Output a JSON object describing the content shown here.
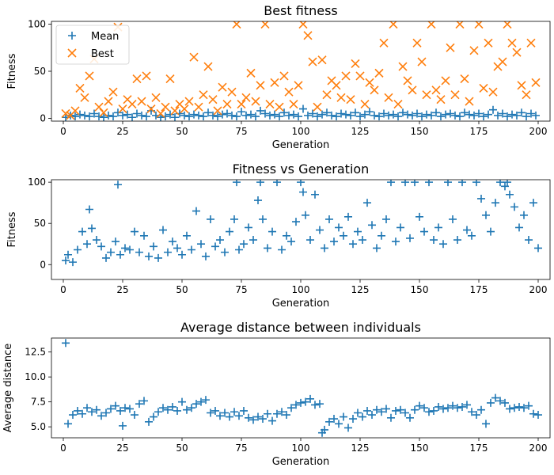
{
  "colors": {
    "mean": "#1f77b4",
    "best": "#ff7f0e"
  },
  "chart_data": [
    {
      "type": "scatter",
      "title": "Best fitness",
      "xlabel": "Generation",
      "ylabel": "Fitness",
      "xlim": [
        -5,
        205
      ],
      "ylim": [
        -3,
        103
      ],
      "xticks": [
        "0",
        "25",
        "50",
        "75",
        "100",
        "125",
        "150",
        "175",
        "200"
      ],
      "yticks": [
        "0",
        "50",
        "100"
      ],
      "legend": {
        "position": "top-left",
        "entries": [
          "Mean",
          "Best"
        ]
      },
      "series": [
        {
          "name": "Mean",
          "marker": "plus",
          "x": [
            1,
            3,
            5,
            7,
            9,
            11,
            13,
            15,
            17,
            19,
            21,
            23,
            25,
            27,
            29,
            31,
            33,
            35,
            37,
            39,
            41,
            43,
            45,
            47,
            49,
            51,
            53,
            55,
            57,
            59,
            61,
            63,
            65,
            67,
            69,
            71,
            73,
            75,
            77,
            79,
            81,
            83,
            85,
            87,
            89,
            91,
            93,
            95,
            97,
            99,
            101,
            103,
            105,
            107,
            109,
            111,
            113,
            115,
            117,
            119,
            121,
            123,
            125,
            127,
            129,
            131,
            133,
            135,
            137,
            139,
            141,
            143,
            145,
            147,
            149,
            151,
            153,
            155,
            157,
            159,
            161,
            163,
            165,
            167,
            169,
            171,
            173,
            175,
            177,
            179,
            181,
            183,
            185,
            187,
            189,
            191,
            193,
            195,
            197,
            199
          ],
          "y": [
            1,
            3,
            2,
            4,
            3,
            2,
            5,
            2,
            1,
            3,
            2,
            6,
            3,
            4,
            1,
            5,
            3,
            2,
            8,
            3,
            1,
            2,
            4,
            1,
            5,
            3,
            2,
            4,
            3,
            2,
            6,
            3,
            2,
            4,
            5,
            3,
            2,
            7,
            3,
            4,
            2,
            8,
            5,
            3,
            4,
            2,
            6,
            3,
            4,
            2,
            10,
            3,
            5,
            2,
            4,
            6,
            3,
            2,
            5,
            4,
            3,
            6,
            2,
            4,
            7,
            3,
            2,
            5,
            3,
            4,
            2,
            6,
            4,
            3,
            5,
            2,
            4,
            3,
            6,
            2,
            4,
            5,
            3,
            2,
            6,
            4,
            3,
            5,
            2,
            4,
            9,
            3,
            5,
            2,
            4,
            3,
            6,
            2,
            5,
            3
          ]
        },
        {
          "name": "Best",
          "marker": "x",
          "x": [
            1,
            3,
            5,
            7,
            9,
            11,
            13,
            15,
            17,
            19,
            21,
            23,
            25,
            27,
            29,
            31,
            33,
            35,
            37,
            39,
            41,
            43,
            45,
            47,
            49,
            51,
            53,
            55,
            57,
            59,
            61,
            63,
            65,
            67,
            69,
            71,
            73,
            75,
            77,
            79,
            81,
            83,
            85,
            87,
            89,
            91,
            93,
            95,
            97,
            99,
            101,
            103,
            105,
            107,
            109,
            111,
            113,
            115,
            117,
            119,
            121,
            123,
            125,
            127,
            129,
            131,
            133,
            135,
            137,
            139,
            141,
            143,
            145,
            147,
            149,
            151,
            153,
            155,
            157,
            159,
            161,
            163,
            165,
            167,
            169,
            171,
            173,
            175,
            177,
            179,
            181,
            183,
            185,
            187,
            189,
            191,
            193,
            195,
            197,
            199
          ],
          "y": [
            5,
            3,
            8,
            32,
            22,
            45,
            63,
            12,
            6,
            18,
            28,
            97,
            10,
            20,
            15,
            42,
            18,
            45,
            10,
            22,
            5,
            12,
            42,
            8,
            15,
            10,
            18,
            65,
            12,
            25,
            55,
            20,
            8,
            33,
            15,
            28,
            100,
            15,
            22,
            48,
            18,
            35,
            100,
            15,
            38,
            12,
            45,
            28,
            15,
            35,
            100,
            88,
            60,
            12,
            62,
            25,
            40,
            35,
            22,
            45,
            20,
            58,
            45,
            15,
            38,
            30,
            48,
            80,
            22,
            100,
            15,
            55,
            40,
            30,
            80,
            60,
            25,
            100,
            30,
            20,
            40,
            75,
            25,
            100,
            42,
            18,
            72,
            100,
            32,
            80,
            28,
            55,
            60,
            100,
            80,
            70,
            35,
            25,
            80,
            38
          ]
        }
      ]
    },
    {
      "type": "scatter",
      "title": "Fitness vs Generation",
      "xlabel": "Generation",
      "ylabel": "Fitness",
      "xlim": [
        -5,
        205
      ],
      "ylim": [
        -18,
        103
      ],
      "xticks": [
        "0",
        "25",
        "50",
        "75",
        "100",
        "125",
        "150",
        "175",
        "200"
      ],
      "yticks": [
        "0",
        "50",
        "100"
      ],
      "series": [
        {
          "marker": "plus",
          "x": [
            1,
            2,
            4,
            6,
            8,
            10,
            11,
            12,
            14,
            16,
            18,
            20,
            22,
            23,
            24,
            26,
            28,
            30,
            32,
            34,
            36,
            38,
            40,
            42,
            44,
            46,
            48,
            50,
            52,
            54,
            56,
            58,
            60,
            62,
            64,
            66,
            68,
            70,
            72,
            73,
            74,
            76,
            78,
            80,
            82,
            83,
            84,
            86,
            88,
            90,
            92,
            94,
            96,
            98,
            100,
            101,
            102,
            104,
            106,
            108,
            110,
            112,
            114,
            116,
            118,
            120,
            122,
            124,
            126,
            128,
            130,
            132,
            134,
            136,
            138,
            140,
            142,
            144,
            146,
            148,
            150,
            152,
            154,
            156,
            158,
            160,
            162,
            164,
            166,
            168,
            170,
            172,
            174,
            176,
            178,
            180,
            182,
            184,
            186,
            187,
            188,
            190,
            192,
            194,
            196,
            198,
            200
          ],
          "y": [
            5,
            12,
            3,
            18,
            40,
            25,
            67,
            44,
            30,
            22,
            8,
            15,
            28,
            97,
            12,
            20,
            18,
            40,
            15,
            35,
            10,
            22,
            8,
            42,
            15,
            28,
            20,
            12,
            35,
            18,
            65,
            25,
            10,
            55,
            22,
            30,
            15,
            40,
            55,
            100,
            18,
            25,
            45,
            30,
            78,
            100,
            55,
            20,
            40,
            100,
            18,
            35,
            28,
            52,
            100,
            88,
            60,
            30,
            85,
            42,
            20,
            55,
            28,
            45,
            35,
            58,
            25,
            40,
            30,
            75,
            48,
            20,
            35,
            55,
            100,
            28,
            45,
            100,
            32,
            100,
            58,
            40,
            100,
            30,
            45,
            25,
            100,
            55,
            30,
            100,
            42,
            35,
            100,
            80,
            60,
            40,
            75,
            100,
            95,
            100,
            85,
            70,
            45,
            60,
            30,
            75,
            20
          ]
        }
      ]
    },
    {
      "type": "scatter",
      "title": "Average distance between individuals",
      "xlabel": "Generation",
      "ylabel": "Average distance",
      "xlim": [
        -5,
        205
      ],
      "ylim": [
        3.9,
        13.9
      ],
      "xticks": [
        "0",
        "25",
        "50",
        "75",
        "100",
        "125",
        "150",
        "175",
        "200"
      ],
      "yticks": [
        "5.0",
        "7.5",
        "10.0",
        "12.5"
      ],
      "series": [
        {
          "marker": "plus",
          "x": [
            1,
            2,
            4,
            6,
            8,
            10,
            12,
            14,
            16,
            18,
            20,
            22,
            24,
            25,
            26,
            28,
            30,
            32,
            34,
            36,
            38,
            40,
            42,
            44,
            46,
            48,
            50,
            52,
            54,
            56,
            58,
            60,
            62,
            64,
            66,
            68,
            70,
            72,
            74,
            76,
            78,
            80,
            82,
            84,
            86,
            88,
            90,
            92,
            94,
            96,
            98,
            100,
            102,
            104,
            106,
            108,
            109,
            110,
            112,
            114,
            116,
            118,
            120,
            122,
            124,
            126,
            128,
            130,
            132,
            134,
            136,
            138,
            140,
            142,
            144,
            146,
            148,
            150,
            152,
            154,
            156,
            158,
            160,
            162,
            164,
            166,
            168,
            170,
            172,
            174,
            176,
            178,
            180,
            182,
            184,
            186,
            188,
            190,
            192,
            194,
            196,
            198,
            200
          ],
          "y": [
            13.4,
            5.3,
            6.2,
            6.6,
            6.3,
            6.9,
            6.5,
            6.7,
            6.1,
            6.4,
            6.8,
            7.1,
            6.6,
            5.1,
            6.9,
            6.8,
            6.2,
            7.3,
            7.6,
            5.5,
            6.0,
            6.5,
            6.9,
            6.7,
            7.0,
            6.6,
            7.5,
            6.7,
            6.9,
            7.3,
            7.5,
            7.7,
            6.4,
            6.6,
            6.1,
            6.4,
            6.0,
            6.5,
            6.1,
            6.6,
            5.9,
            5.7,
            6.0,
            5.8,
            6.3,
            5.6,
            6.3,
            6.5,
            6.2,
            6.9,
            7.2,
            7.4,
            7.5,
            7.8,
            7.2,
            7.3,
            4.4,
            4.7,
            5.5,
            5.8,
            5.3,
            6.0,
            4.9,
            5.8,
            6.4,
            6.0,
            6.6,
            6.2,
            6.7,
            6.5,
            6.8,
            5.9,
            6.6,
            6.7,
            6.4,
            5.9,
            6.7,
            7.1,
            6.9,
            6.5,
            6.6,
            7.0,
            6.8,
            6.9,
            7.1,
            6.9,
            7.0,
            7.2,
            6.5,
            6.2,
            6.7,
            5.3,
            7.4,
            7.9,
            7.6,
            7.4,
            6.8,
            6.9,
            7.0,
            6.9,
            7.1,
            6.3,
            6.2
          ]
        }
      ]
    }
  ]
}
